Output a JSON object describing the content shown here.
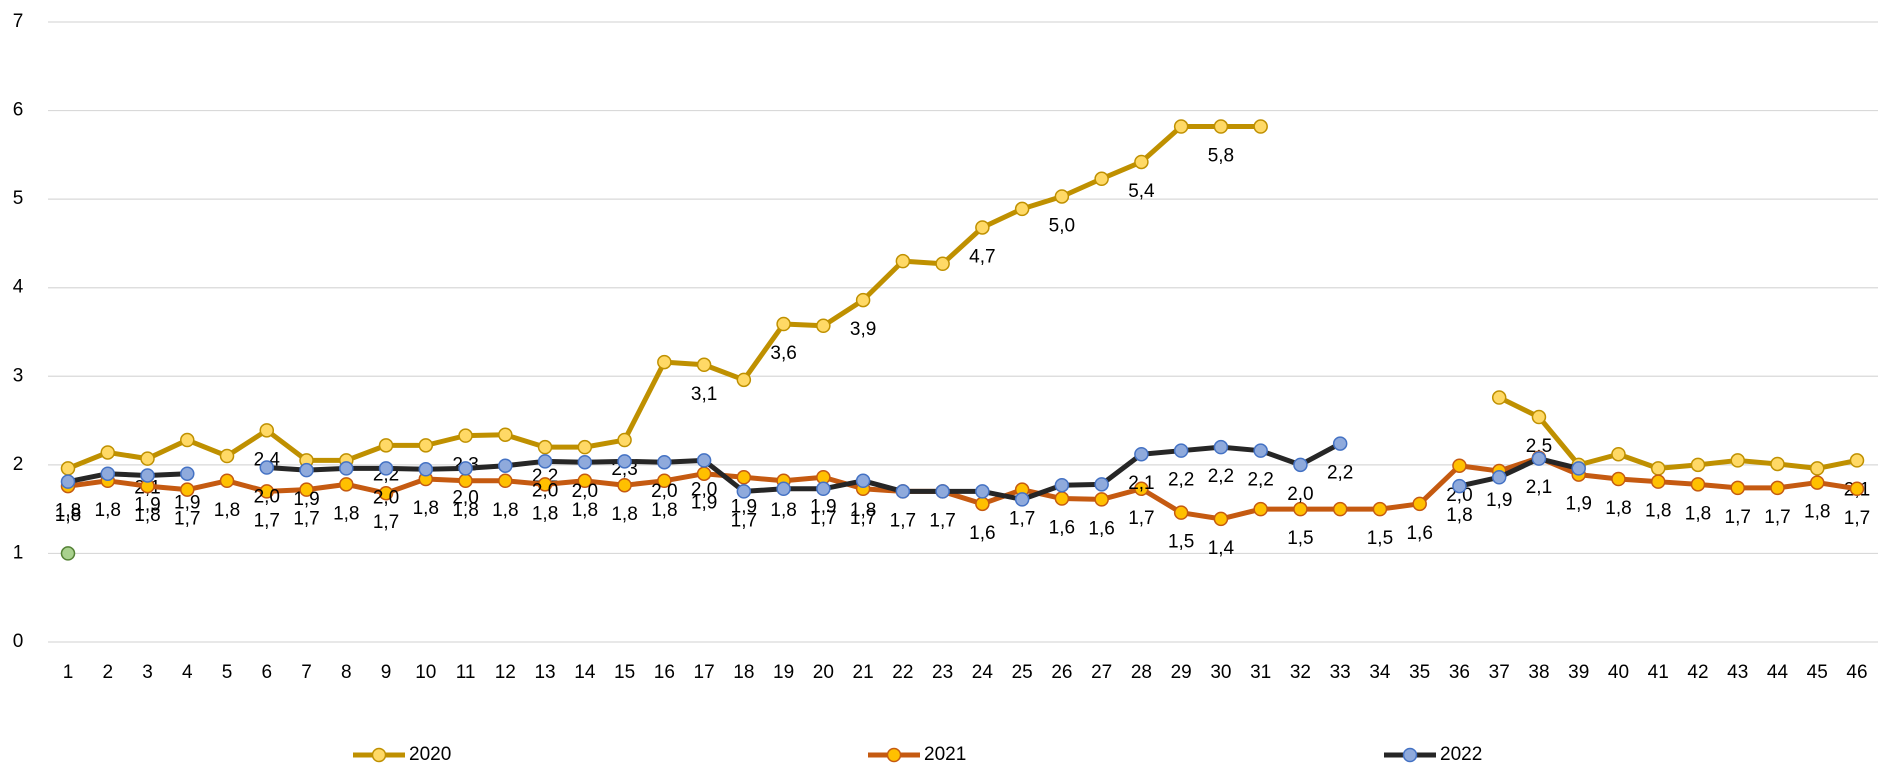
{
  "chart_data": {
    "type": "line",
    "categories": [
      "1",
      "2",
      "3",
      "4",
      "5",
      "6",
      "7",
      "8",
      "9",
      "10",
      "11",
      "12",
      "13",
      "14",
      "15",
      "16",
      "17",
      "18",
      "19",
      "20",
      "21",
      "22",
      "23",
      "24",
      "25",
      "26",
      "27",
      "28",
      "29",
      "30",
      "31",
      "32",
      "33",
      "34",
      "35",
      "36",
      "37",
      "38",
      "39",
      "40",
      "41",
      "42",
      "43",
      "44",
      "45",
      "46"
    ],
    "ylim": [
      0,
      7
    ],
    "yticks": [
      0,
      1,
      2,
      3,
      4,
      5,
      6,
      7
    ],
    "grid": true,
    "legend": "bottom",
    "series": [
      {
        "name": "2020",
        "color": "#bf9000",
        "marker_fill": "#ffd966",
        "marker_stroke": "#bf9000",
        "values": [
          1.96,
          2.14,
          2.07,
          2.28,
          2.1,
          2.39,
          2.05,
          2.05,
          2.22,
          2.22,
          2.33,
          2.34,
          2.2,
          2.2,
          2.28,
          3.16,
          3.13,
          2.96,
          3.59,
          3.57,
          3.86,
          4.3,
          4.27,
          4.68,
          4.89,
          5.03,
          5.23,
          5.42,
          5.82,
          5.82,
          5.82,
          null,
          null,
          null,
          null,
          null,
          2.76,
          2.54,
          2.0,
          2.12,
          1.96,
          2.0,
          2.05,
          2.01,
          1.96,
          2.05
        ],
        "value_labels": [
          null,
          null,
          "2,1",
          null,
          null,
          "2,4",
          null,
          null,
          "2,2",
          null,
          "2,3",
          null,
          "2,2",
          null,
          "2,3",
          null,
          "3,1",
          null,
          "3,6",
          null,
          "3,9",
          null,
          null,
          "4,7",
          null,
          "5,0",
          null,
          "5,4",
          null,
          "5,8",
          null,
          null,
          null,
          null,
          null,
          null,
          null,
          "2,5",
          null,
          null,
          null,
          null,
          null,
          null,
          null,
          "2,1"
        ]
      },
      {
        "name": "2021",
        "color": "#c55a11",
        "marker_fill": "#ffc000",
        "marker_stroke": "#c55a11",
        "values": [
          1.76,
          1.82,
          1.76,
          1.72,
          1.82,
          1.7,
          1.72,
          1.78,
          1.68,
          1.84,
          1.82,
          1.82,
          1.78,
          1.82,
          1.77,
          1.82,
          1.9,
          1.86,
          1.82,
          1.86,
          1.73,
          1.7,
          1.7,
          1.56,
          1.72,
          1.62,
          1.61,
          1.73,
          1.46,
          1.39,
          1.5,
          1.5,
          1.5,
          1.5,
          1.56,
          1.99,
          1.93,
          2.08,
          1.89,
          1.84,
          1.81,
          1.78,
          1.74,
          1.74,
          1.8,
          1.73
        ],
        "value_labels": [
          "1,8",
          "1,8",
          "1,8",
          "1,7",
          "1,8",
          "1,7",
          "1,7",
          "1,8",
          "1,7",
          "1,8",
          "1,8",
          "1,8",
          "1,8",
          "1,8",
          "1,8",
          "1,8",
          "1,9",
          "1,9",
          "1,8",
          "1,9",
          "1,7",
          "1,7",
          "1,7",
          "1,6",
          "1,7",
          "1,6",
          "1,6",
          "1,7",
          "1,5",
          "1,4",
          null,
          "1,5",
          null,
          "1,5",
          "1,6",
          "2,0",
          "1,9",
          "2,1",
          "1,9",
          "1,8",
          "1,8",
          "1,8",
          "1,7",
          "1,7",
          "1,8",
          "1,7"
        ]
      },
      {
        "name": "2022",
        "color": "#262626",
        "marker_fill": "#8faadc",
        "marker_stroke": "#4472c4",
        "values": [
          1.81,
          1.9,
          1.88,
          1.9,
          null,
          1.97,
          1.94,
          1.96,
          1.96,
          1.95,
          1.96,
          1.99,
          2.04,
          2.03,
          2.04,
          2.03,
          2.05,
          1.7,
          1.73,
          1.73,
          1.82,
          1.7,
          1.7,
          1.7,
          1.61,
          1.77,
          1.78,
          2.12,
          2.16,
          2.2,
          2.16,
          2.0,
          2.24,
          null,
          null,
          1.76,
          1.86,
          2.07,
          1.96,
          null,
          null,
          null,
          null,
          null,
          null,
          null
        ],
        "value_labels": [
          "1,8",
          null,
          "1,9",
          "1,9",
          null,
          "2,0",
          "1,9",
          null,
          "2,0",
          null,
          "2,0",
          null,
          "2,0",
          "2,0",
          null,
          "2,0",
          "2,0",
          "1,7",
          null,
          "1,7",
          "1,8",
          null,
          null,
          null,
          null,
          null,
          null,
          "2,1",
          "2,2",
          "2,2",
          "2,2",
          "2,0",
          "2,2",
          null,
          null,
          "1,8",
          null,
          null,
          null,
          null,
          null,
          null,
          null,
          null,
          null,
          null
        ]
      },
      {
        "color": "#548235",
        "marker_fill": "#a9d18e",
        "marker_stroke": "#548235",
        "values": [
          1.0,
          null,
          null,
          null,
          null,
          null,
          null,
          null,
          null,
          null,
          null,
          null,
          null,
          null,
          null,
          null,
          null,
          null,
          null,
          null,
          null,
          null,
          null,
          null,
          null,
          null,
          null,
          null,
          null,
          null,
          null,
          null,
          null,
          null,
          null,
          null,
          null,
          null,
          null,
          null,
          null,
          null,
          null,
          null,
          null,
          null
        ]
      }
    ]
  }
}
